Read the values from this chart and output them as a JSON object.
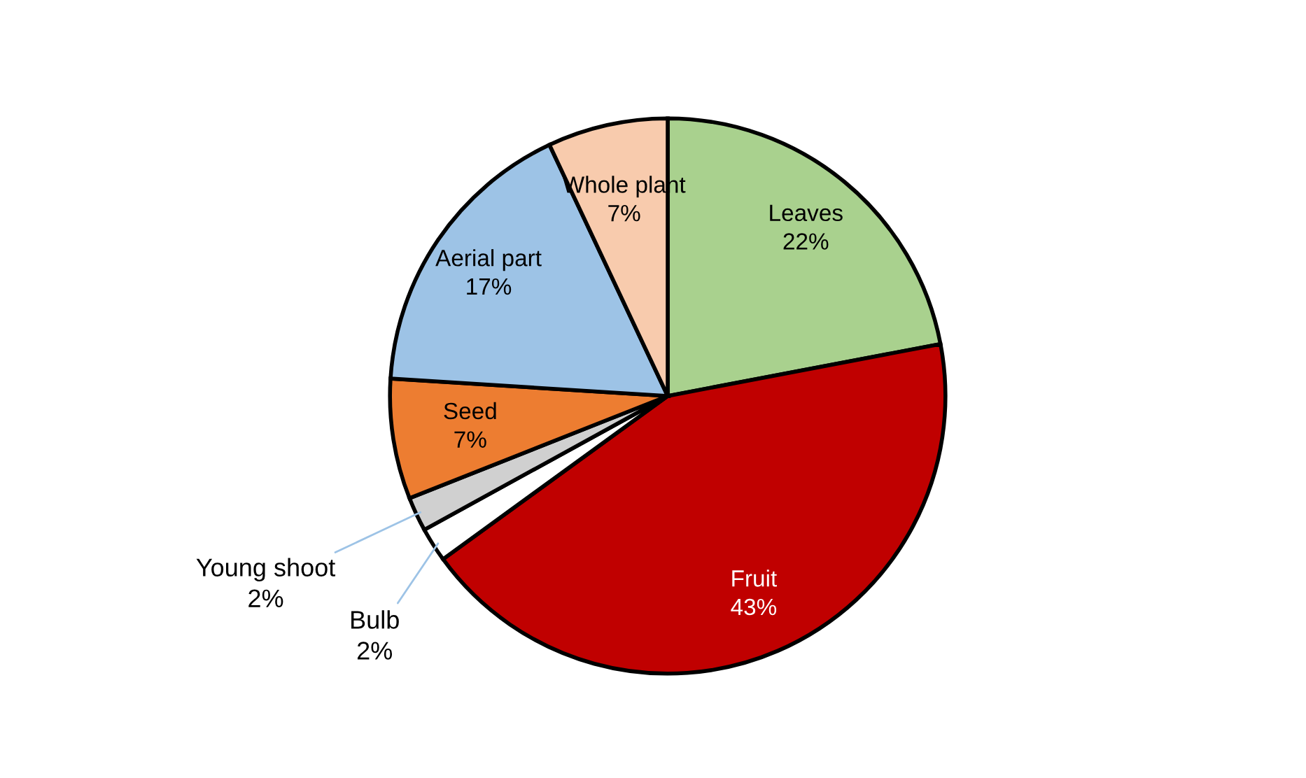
{
  "chart_data": {
    "type": "pie",
    "categories": [
      "Leaves",
      "Fruit",
      "Bulb",
      "Young shoot",
      "Seed",
      "Aerial part",
      "Whole plant"
    ],
    "values": [
      22,
      43,
      2,
      2,
      7,
      17,
      7
    ],
    "colors": [
      "#a9d18e",
      "#c00000",
      "#ffffff",
      "#d0d0d0",
      "#ed7d31",
      "#9dc3e6",
      "#f8cbad"
    ],
    "value_labels": [
      "22%",
      "43%",
      "2%",
      "2%",
      "7%",
      "17%",
      "7%"
    ]
  }
}
